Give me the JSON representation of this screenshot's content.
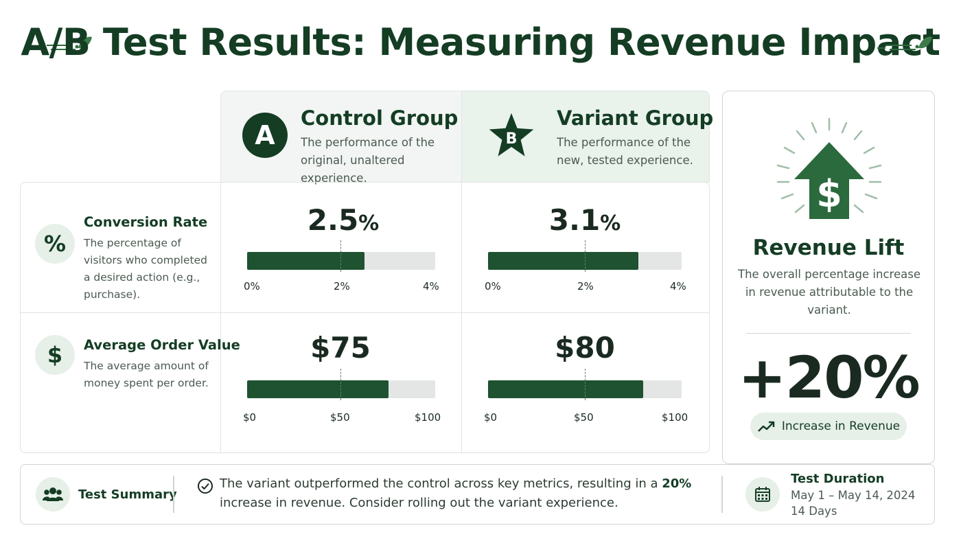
{
  "title": "A/B Test Results: Measuring Revenue Impact",
  "groups": {
    "control": {
      "badge": "A",
      "title": "Control Group",
      "description": "The performance of the original, unaltered experience."
    },
    "variant": {
      "badge": "B",
      "title": "Variant Group",
      "description": "The performance of the new, tested experience."
    }
  },
  "metrics": {
    "conversion": {
      "icon": "%",
      "title": "Conversion Rate",
      "description": "The percentage of visitors who completed a desired action (e.g., purchase).",
      "control_value": "2.5",
      "variant_value": "3.1",
      "unit": "%",
      "control_fraction": 0.625,
      "variant_fraction": 0.775,
      "ticks": [
        "0%",
        "2%",
        "4%"
      ]
    },
    "aov": {
      "icon": "$",
      "title": "Average Order Value",
      "description": "The average amount of money spent per order.",
      "control_value": "$75",
      "variant_value": "$80",
      "control_fraction": 0.75,
      "variant_fraction": 0.8,
      "ticks": [
        "$0",
        "$50",
        "$100"
      ]
    }
  },
  "lift": {
    "title": "Revenue Lift",
    "description": "The overall percentage increase in revenue attributable to the variant.",
    "value": "+20%",
    "pill_label": "Increase in Revenue"
  },
  "summary": {
    "label": "Test Summary",
    "text_before": "The variant outperformed the control across key metrics, resulting in a ",
    "text_bold": "20%",
    "text_after": " increase in revenue. Consider rolling out the variant experience.",
    "duration_title": "Test Duration",
    "duration_dates": "May 1 – May 14, 2024",
    "duration_days": "14 Days"
  },
  "colors": {
    "accent": "#1e5230",
    "dark": "#143d24",
    "light": "#e6efe8",
    "track": "#e4e6e5"
  }
}
